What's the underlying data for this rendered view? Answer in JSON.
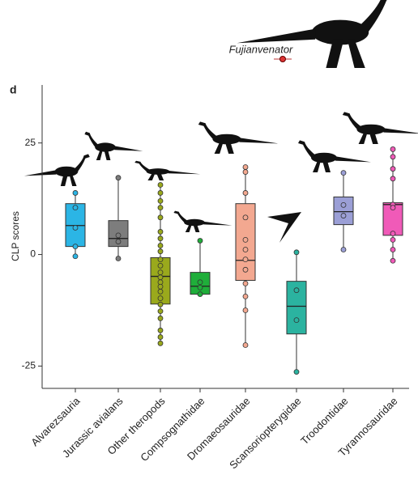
{
  "chart_data": {
    "type": "box",
    "panel_label": "d",
    "annotation": "Fujianvenator",
    "ylabel": "CLP scores",
    "ylim": [
      -30,
      38
    ],
    "yticks": [
      -25,
      0,
      25
    ],
    "categories": [
      "Alvarezsauria",
      "Jurassic avialans",
      "Other theropods",
      "Compsognathidae",
      "Dromaeosauridae",
      "Scansoriopterygidae",
      "Troodontidae",
      "Tyrannosauridae"
    ],
    "boxes": [
      {
        "color": "#2bb5e5",
        "whisker_low": -0.4,
        "q1": 1.8,
        "median": 6.5,
        "q3": 11.4,
        "whisker_high": 13.8,
        "points": [
          13.8,
          10.5,
          6.0,
          1.8,
          -0.4
        ]
      },
      {
        "color": "#7d7d7d",
        "whisker_low": -0.9,
        "q1": 1.8,
        "median": 3.6,
        "q3": 7.6,
        "whisker_high": 17.2,
        "points": [
          17.2,
          4.3,
          2.9,
          -0.9
        ]
      },
      {
        "color": "#9aa91c",
        "whisker_low": -19.9,
        "q1": -11.1,
        "median": -4.9,
        "q3": -0.7,
        "whisker_high": 15.6,
        "points": [
          15.6,
          13.8,
          12.0,
          10.5,
          8.3,
          5.1,
          3.6,
          2.0,
          0.7,
          -1.1,
          -2.5,
          -4.0,
          -5.1,
          -6.2,
          -7.2,
          -8.3,
          -9.8,
          -11.2,
          -12.7,
          -14.3,
          -17.0,
          -18.5,
          -19.9
        ]
      },
      {
        "color": "#1fae3a",
        "whisker_low": -8.9,
        "q1": -8.9,
        "median": -7.1,
        "q3": -4.0,
        "whisker_high": 3.1,
        "points": [
          3.1,
          -6.2,
          -7.4,
          -8.9
        ]
      },
      {
        "color": "#f3a890",
        "whisker_low": -20.3,
        "q1": -5.8,
        "median": -1.3,
        "q3": 11.4,
        "whisker_high": 19.6,
        "points": [
          19.6,
          18.5,
          13.8,
          8.3,
          3.3,
          1.1,
          -1.1,
          -3.4,
          -6.5,
          -9.4,
          -12.5,
          -20.3
        ]
      },
      {
        "color": "#2bb3a0",
        "whisker_low": -26.3,
        "q1": -17.8,
        "median": -11.6,
        "q3": -6.0,
        "whisker_high": 0.5,
        "points": [
          0.5,
          -8.0,
          -14.7,
          -26.3
        ]
      },
      {
        "color": "#9b9fd6",
        "whisker_low": 1.1,
        "q1": 6.7,
        "median": 9.6,
        "q3": 12.9,
        "whisker_high": 18.3,
        "points": [
          18.3,
          11.1,
          8.7,
          1.1
        ]
      },
      {
        "color": "#f05ab8",
        "whisker_low": -1.4,
        "q1": 4.3,
        "median": 11.2,
        "q3": 11.6,
        "whisker_high": 23.6,
        "points": [
          23.6,
          21.9,
          19.2,
          17.0,
          11.2,
          10.5,
          4.7,
          3.3,
          1.1,
          -1.4
        ]
      }
    ]
  }
}
